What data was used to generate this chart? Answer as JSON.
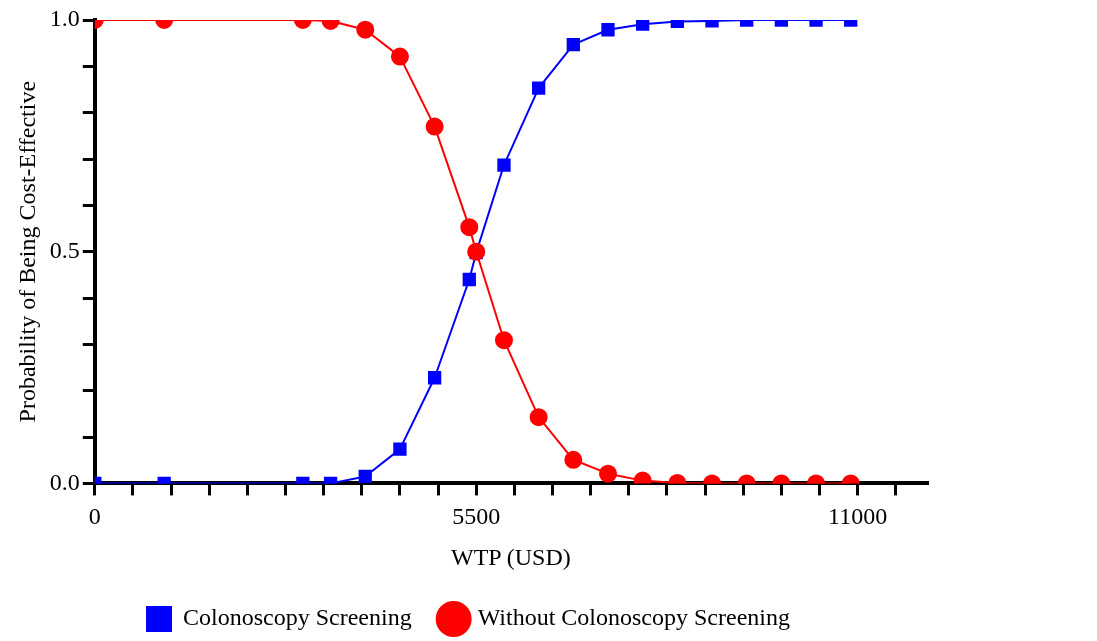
{
  "chart_data": {
    "type": "line",
    "xlabel": "WTP (USD)",
    "ylabel": "Probability of Being Cost-Effective",
    "xlim": [
      0,
      12000
    ],
    "xticks": [
      0,
      {
        "value": 550,
        "label": null
      },
      {
        "value": 1100,
        "label": null
      },
      {
        "value": 1650,
        "label": null
      },
      {
        "value": 2200,
        "label": null
      },
      {
        "value": 2750,
        "label": null
      },
      {
        "value": 3300,
        "label": null
      },
      {
        "value": 3850,
        "label": null
      },
      {
        "value": 4400,
        "label": null
      },
      {
        "value": 4950,
        "label": null
      },
      5500,
      {
        "value": 6050,
        "label": null
      },
      {
        "value": 6600,
        "label": null
      },
      {
        "value": 7150,
        "label": null
      },
      {
        "value": 7700,
        "label": null
      },
      {
        "value": 8250,
        "label": null
      },
      {
        "value": 8800,
        "label": null
      },
      {
        "value": 9350,
        "label": null
      },
      {
        "value": 9900,
        "label": null
      },
      {
        "value": 10450,
        "label": null
      },
      11000,
      {
        "value": 11550,
        "label": null
      }
    ],
    "ylim": [
      0,
      1
    ],
    "yticks": [
      {
        "value": 0,
        "label": "0.0"
      },
      {
        "value": 0.1,
        "label": null
      },
      {
        "value": 0.2,
        "label": null
      },
      {
        "value": 0.3,
        "label": null
      },
      {
        "value": 0.4,
        "label": null
      },
      {
        "value": 0.5,
        "label": "0.5"
      },
      {
        "value": 0.6,
        "label": null
      },
      {
        "value": 0.7,
        "label": null
      },
      {
        "value": 0.8,
        "label": null
      },
      {
        "value": 0.9,
        "label": null
      },
      {
        "value": 1,
        "label": "1.0"
      }
    ],
    "x": [
      0,
      1000,
      3000,
      3400,
      3900,
      4400,
      4900,
      5400,
      5500,
      5900,
      6400,
      6900,
      7400,
      7900,
      8400,
      8900,
      9400,
      9900,
      10400,
      10900
    ],
    "grid": false,
    "legend": "bottom",
    "series": [
      {
        "name": "Colonoscopy Screening",
        "color": "#0000ff",
        "marker": "square",
        "values": [
          0,
          0,
          0,
          0,
          0.015,
          0.074,
          0.228,
          0.44,
          0.498,
          0.687,
          0.853,
          0.947,
          0.979,
          0.991,
          0.997,
          0.998,
          1,
          1,
          1,
          1
        ]
      },
      {
        "name": "Without Colonoscopy Screening",
        "color": "#ff0000",
        "marker": "circle",
        "values": [
          1,
          1,
          1,
          0.998,
          0.979,
          0.921,
          0.77,
          0.553,
          0.5,
          0.309,
          0.143,
          0.051,
          0.021,
          0.006,
          0.001,
          0,
          0,
          0,
          0,
          0
        ]
      }
    ]
  }
}
